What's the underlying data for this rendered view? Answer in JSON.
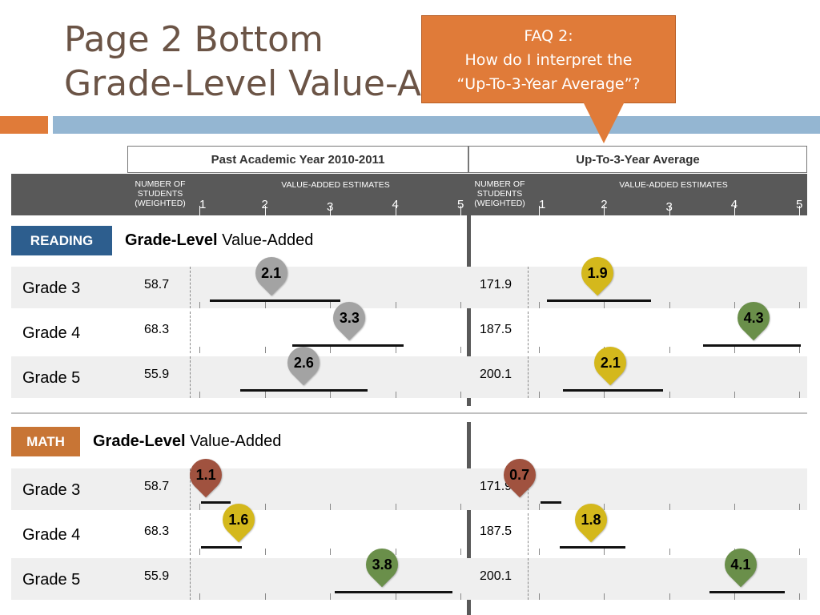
{
  "title": {
    "line1": "Page 2 Bottom",
    "line2": "Grade-Level Value-Added"
  },
  "callout": {
    "line1": "FAQ 2:",
    "line2": "How do I interpret the",
    "line3": "“Up-To-3-Year Average”?"
  },
  "headers": {
    "past": "Past Academic Year 2010-2011",
    "avg": "Up-To-3-Year Average"
  },
  "band": {
    "students_label_1": "NUMBER OF",
    "students_label_2": "STUDENTS",
    "students_label_3": "(WEIGHTED)",
    "estimates_label": "VALUE-ADDED ESTIMATES",
    "ticks": [
      "1",
      "2",
      "3",
      "4",
      "5"
    ]
  },
  "colors": {
    "green": "#6a8f4a",
    "yellow": "#d4b81c",
    "gray": "#a3a3a3",
    "red": "#a0523f",
    "reading_badge": "#2d5e8e",
    "math_badge": "#c87535"
  },
  "sections": [
    {
      "badge": "READING",
      "title_bold": "Grade-Level",
      "title_rest": "Value-Added",
      "rows": [
        {
          "grade": "Grade 3",
          "n_past": "58.7",
          "est_past": 2.1,
          "label_past": "2.1",
          "color_past": "gray",
          "ci_past": [
            1.14,
            3.14
          ],
          "n_avg": "171.9",
          "est_avg": 1.9,
          "label_avg": "1.9",
          "color_avg": "yellow",
          "ci_avg": [
            1.1,
            2.7
          ]
        },
        {
          "grade": "Grade 4",
          "n_past": "68.3",
          "est_past": 3.3,
          "label_past": "3.3",
          "color_past": "gray",
          "ci_past": [
            2.4,
            4.1
          ],
          "n_avg": "187.5",
          "est_avg": 4.3,
          "label_avg": "4.3",
          "color_avg": "green",
          "ci_avg": [
            3.5,
            5.0
          ]
        },
        {
          "grade": "Grade 5",
          "n_past": "55.9",
          "est_past": 2.6,
          "label_past": "2.6",
          "color_past": "gray",
          "ci_past": [
            1.6,
            3.55
          ],
          "n_avg": "200.1",
          "est_avg": 2.1,
          "label_avg": "2.1",
          "color_avg": "yellow",
          "ci_avg": [
            1.35,
            2.88
          ]
        }
      ]
    },
    {
      "badge": "MATH",
      "title_bold": "Grade-Level",
      "title_rest": "Value-Added",
      "rows": [
        {
          "grade": "Grade 3",
          "n_past": "58.7",
          "est_past": 1.1,
          "label_past": "1.1",
          "color_past": "red",
          "ci_past": [
            1.0,
            1.45
          ],
          "n_avg": "171.9",
          "est_avg": 0.7,
          "label_avg": "0.7",
          "color_avg": "red",
          "ci_avg": [
            1.0,
            1.32
          ]
        },
        {
          "grade": "Grade 4",
          "n_past": "68.3",
          "est_past": 1.6,
          "label_past": "1.6",
          "color_past": "yellow",
          "ci_past": [
            1.0,
            1.63
          ],
          "n_avg": "187.5",
          "est_avg": 1.8,
          "label_avg": "1.8",
          "color_avg": "yellow",
          "ci_avg": [
            1.3,
            2.3
          ]
        },
        {
          "grade": "Grade 5",
          "n_past": "55.9",
          "est_past": 3.8,
          "label_past": "3.8",
          "color_past": "green",
          "ci_past": [
            3.05,
            4.85
          ],
          "n_avg": "200.1",
          "est_avg": 4.1,
          "label_avg": "4.1",
          "color_avg": "green",
          "ci_avg": [
            3.6,
            4.75
          ]
        }
      ]
    }
  ]
}
